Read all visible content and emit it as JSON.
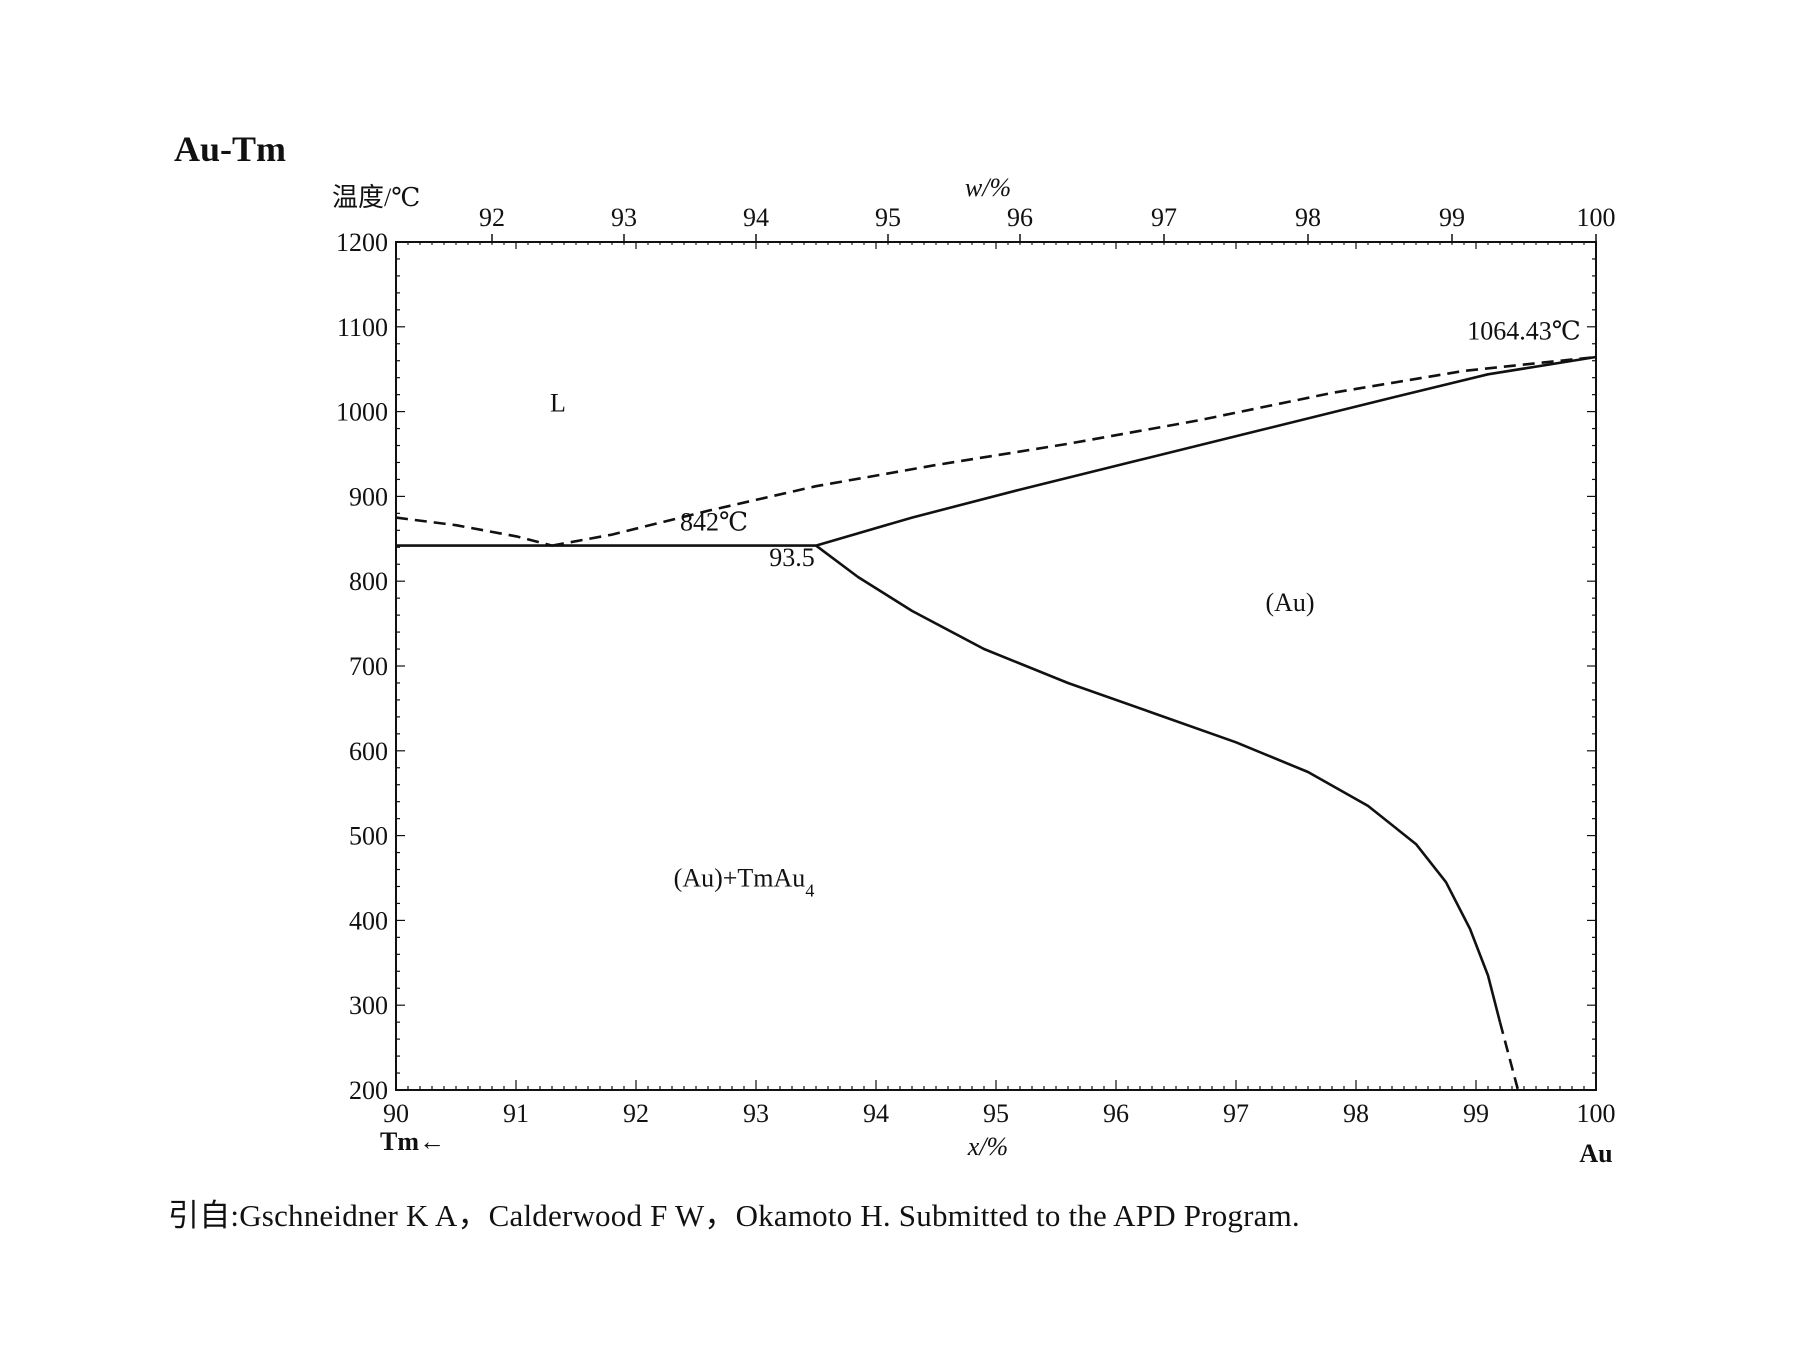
{
  "title": "Au-Tm",
  "citation": "引自:Gschneidner K A，Calderwood F W，Okamoto H. Submitted to the APD Program.",
  "chart_data": {
    "type": "line",
    "title": "Au-Tm",
    "ylabel": "温度/℃",
    "xlabel_bottom": "x/%",
    "xlabel_top": "w/%",
    "left_element": "Tm←",
    "right_element": "Au",
    "xlim": [
      90,
      100
    ],
    "ylim": [
      200,
      1200
    ],
    "x_ticks": [
      "90",
      "91",
      "92",
      "93",
      "94",
      "95",
      "96",
      "97",
      "98",
      "99",
      "100"
    ],
    "y_ticks": [
      "200",
      "300",
      "400",
      "500",
      "600",
      "700",
      "800",
      "900",
      "1000",
      "1100",
      "1200"
    ],
    "top_ticks": [
      {
        "label": "92",
        "x": 90.8
      },
      {
        "label": "93",
        "x": 91.9
      },
      {
        "label": "94",
        "x": 93.0
      },
      {
        "label": "95",
        "x": 94.1
      },
      {
        "label": "96",
        "x": 95.2
      },
      {
        "label": "97",
        "x": 96.4
      },
      {
        "label": "98",
        "x": 97.6
      },
      {
        "label": "99",
        "x": 98.8
      },
      {
        "label": "100",
        "x": 100
      }
    ],
    "annotations": [
      {
        "text": "1064.43℃",
        "x": 99.4,
        "y": 1085
      },
      {
        "text": "842℃",
        "x": 92.65,
        "y": 860
      },
      {
        "text": "93.5",
        "x": 93.3,
        "y": 818
      }
    ],
    "regions": [
      {
        "text": "L",
        "x": 91.35,
        "y": 1000
      },
      {
        "text": "(Au)",
        "x": 97.45,
        "y": 765
      },
      {
        "text": "(Au)+TmAu",
        "sub": "4",
        "x": 92.9,
        "y": 440
      }
    ],
    "series": [
      {
        "style": "solid",
        "x": [
          90,
          93.5
        ],
        "y": [
          842,
          842
        ]
      },
      {
        "style": "solid",
        "x": [
          93.5,
          94.3,
          95.2,
          96.2,
          97.2,
          98.2,
          99.1,
          100
        ],
        "y": [
          842,
          875,
          908,
          943,
          978,
          1013,
          1044,
          1064.43
        ]
      },
      {
        "style": "solid",
        "x": [
          93.5,
          93.85,
          94.3,
          94.9,
          95.6,
          96.3,
          97.0,
          97.6,
          98.1,
          98.5,
          98.75,
          98.95,
          99.1,
          99.2
        ],
        "y": [
          842,
          805,
          765,
          720,
          680,
          645,
          610,
          575,
          535,
          490,
          445,
          390,
          335,
          280
        ]
      },
      {
        "style": "dashed",
        "x": [
          99.2,
          99.35
        ],
        "y": [
          280,
          200
        ]
      },
      {
        "style": "dashed",
        "x": [
          90,
          90.5,
          91.0,
          91.3
        ],
        "y": [
          875,
          866,
          853,
          842
        ]
      },
      {
        "style": "dashed",
        "x": [
          91.3,
          91.8,
          92.6,
          93.5,
          94.5,
          95.6,
          96.7,
          97.8,
          98.9,
          100
        ],
        "y": [
          842,
          855,
          883,
          912,
          937,
          962,
          990,
          1022,
          1048,
          1064.43
        ]
      }
    ]
  }
}
